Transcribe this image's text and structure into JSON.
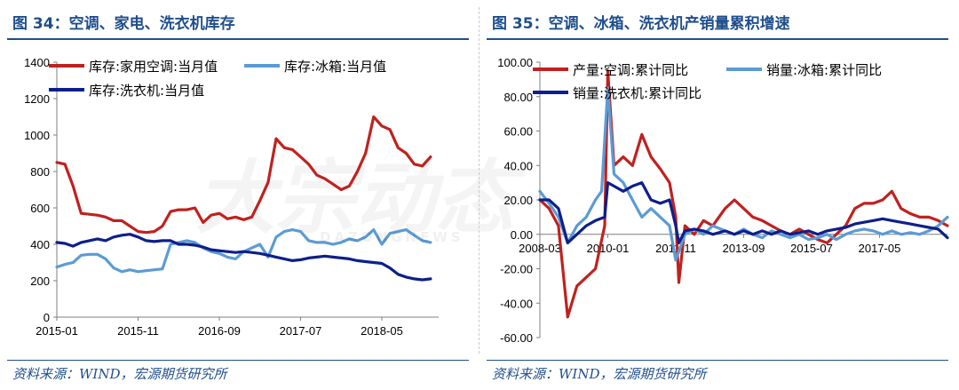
{
  "watermark": {
    "main": "大宗动态",
    "sub": "DAZONGNEWS"
  },
  "left": {
    "title": "图 34：空调、家电、洗衣机库存",
    "source": "资料来源：WIND，宏源期货研究所"
  },
  "right": {
    "title": "图 35：空调、冰箱、洗衣机产销量累积增速",
    "source": "资料来源：WIND，宏源期货研究所"
  },
  "chart_data": [
    {
      "type": "line",
      "title": "图 34：空调、家电、洗衣机库存",
      "xlabel": "",
      "ylabel": "",
      "x_tick_labels": [
        "2015-01",
        "2015-11",
        "2016-09",
        "2017-07",
        "2018-05"
      ],
      "x_tick_positions": [
        0,
        10,
        20,
        30,
        40
      ],
      "x_range": [
        0,
        47
      ],
      "ylim": [
        0,
        1400
      ],
      "y_ticks": [
        0,
        200,
        400,
        600,
        800,
        1000,
        1200,
        1400
      ],
      "legend_position": "top-left",
      "grid": false,
      "series": [
        {
          "name": "库存:家用空调:当月值",
          "color": "#c0211f",
          "values": [
            850,
            840,
            720,
            570,
            565,
            560,
            550,
            530,
            530,
            500,
            470,
            465,
            470,
            500,
            580,
            590,
            590,
            600,
            520,
            560,
            570,
            540,
            550,
            535,
            550,
            640,
            740,
            980,
            930,
            920,
            880,
            840,
            780,
            760,
            730,
            700,
            720,
            800,
            900,
            1100,
            1050,
            1030,
            930,
            900,
            840,
            830,
            880
          ]
        },
        {
          "name": "库存:冰箱:当月值",
          "color": "#5b9bd5",
          "values": [
            275,
            290,
            300,
            340,
            345,
            345,
            320,
            270,
            250,
            260,
            250,
            255,
            260,
            265,
            400,
            410,
            420,
            410,
            380,
            360,
            350,
            330,
            320,
            360,
            380,
            400,
            330,
            440,
            470,
            480,
            470,
            420,
            410,
            410,
            400,
            410,
            430,
            420,
            440,
            480,
            400,
            460,
            470,
            480,
            450,
            420,
            410
          ]
        },
        {
          "name": "库存:洗衣机:当月值",
          "color": "#0d1f8a",
          "values": [
            410,
            405,
            390,
            410,
            420,
            430,
            420,
            440,
            450,
            455,
            440,
            420,
            415,
            420,
            420,
            400,
            400,
            395,
            385,
            370,
            365,
            360,
            355,
            360,
            355,
            350,
            340,
            330,
            320,
            310,
            315,
            325,
            330,
            335,
            330,
            325,
            320,
            310,
            305,
            300,
            295,
            270,
            235,
            220,
            210,
            205,
            210
          ]
        }
      ]
    },
    {
      "type": "line",
      "title": "图 35：空调、冰箱、洗衣机产销量累积增速",
      "xlabel": "",
      "ylabel": "",
      "x_tick_labels": [
        "2008-03",
        "2010-01",
        "2011-11",
        "2013-09",
        "2015-07",
        "2017-05"
      ],
      "x_tick_positions": [
        0,
        22,
        44,
        66,
        88,
        110
      ],
      "x_range": [
        0,
        132
      ],
      "ylim": [
        -60,
        100
      ],
      "y_ticks": [
        -60,
        -40,
        -20,
        0,
        20,
        40,
        60,
        80,
        100
      ],
      "y_tick_labels": [
        "-60.00",
        "-40.00",
        "-20.00",
        "0.00",
        "20.00",
        "40.00",
        "60.00",
        "80.00",
        "100.00"
      ],
      "legend_position": "top-left",
      "grid": false,
      "series": [
        {
          "name": "产量:空调:累计同比",
          "color": "#c0211f",
          "points": [
            [
              0,
              20
            ],
            [
              3,
              15
            ],
            [
              6,
              5
            ],
            [
              9,
              -48
            ],
            [
              12,
              -30
            ],
            [
              15,
              -25
            ],
            [
              18,
              -20
            ],
            [
              21,
              5
            ],
            [
              22,
              95
            ],
            [
              24,
              40
            ],
            [
              27,
              45
            ],
            [
              30,
              40
            ],
            [
              33,
              58
            ],
            [
              36,
              45
            ],
            [
              39,
              38
            ],
            [
              42,
              30
            ],
            [
              44,
              10
            ],
            [
              45,
              -28
            ],
            [
              47,
              5
            ],
            [
              50,
              0
            ],
            [
              53,
              8
            ],
            [
              56,
              5
            ],
            [
              60,
              15
            ],
            [
              63,
              20
            ],
            [
              66,
              15
            ],
            [
              69,
              10
            ],
            [
              72,
              8
            ],
            [
              75,
              5
            ],
            [
              78,
              2
            ],
            [
              81,
              0
            ],
            [
              84,
              3
            ],
            [
              87,
              0
            ],
            [
              90,
              -3
            ],
            [
              93,
              -5
            ],
            [
              96,
              0
            ],
            [
              99,
              5
            ],
            [
              102,
              15
            ],
            [
              105,
              18
            ],
            [
              108,
              18
            ],
            [
              111,
              20
            ],
            [
              114,
              25
            ],
            [
              117,
              15
            ],
            [
              120,
              12
            ],
            [
              123,
              10
            ],
            [
              126,
              10
            ],
            [
              129,
              8
            ],
            [
              132,
              5
            ]
          ]
        },
        {
          "name": "销量:冰箱:累计同比",
          "color": "#5b9bd5",
          "points": [
            [
              0,
              25
            ],
            [
              3,
              18
            ],
            [
              6,
              10
            ],
            [
              9,
              -5
            ],
            [
              12,
              5
            ],
            [
              15,
              10
            ],
            [
              18,
              20
            ],
            [
              20,
              25
            ],
            [
              22,
              85
            ],
            [
              24,
              35
            ],
            [
              27,
              30
            ],
            [
              30,
              20
            ],
            [
              33,
              10
            ],
            [
              36,
              15
            ],
            [
              39,
              10
            ],
            [
              42,
              5
            ],
            [
              44,
              -15
            ],
            [
              47,
              0
            ],
            [
              50,
              3
            ],
            [
              53,
              0
            ],
            [
              56,
              5
            ],
            [
              60,
              2
            ],
            [
              63,
              0
            ],
            [
              66,
              3
            ],
            [
              69,
              0
            ],
            [
              72,
              -2
            ],
            [
              75,
              2
            ],
            [
              78,
              0
            ],
            [
              81,
              -2
            ],
            [
              84,
              0
            ],
            [
              87,
              -3
            ],
            [
              90,
              -2
            ],
            [
              93,
              0
            ],
            [
              96,
              -3
            ],
            [
              99,
              0
            ],
            [
              102,
              2
            ],
            [
              105,
              3
            ],
            [
              108,
              2
            ],
            [
              111,
              0
            ],
            [
              114,
              2
            ],
            [
              117,
              0
            ],
            [
              120,
              1
            ],
            [
              123,
              0
            ],
            [
              126,
              2
            ],
            [
              129,
              5
            ],
            [
              132,
              10
            ]
          ]
        },
        {
          "name": "销量:洗衣机:累计同比",
          "color": "#0d1f8a",
          "points": [
            [
              0,
              20
            ],
            [
              3,
              20
            ],
            [
              6,
              15
            ],
            [
              9,
              -5
            ],
            [
              12,
              0
            ],
            [
              15,
              5
            ],
            [
              18,
              8
            ],
            [
              21,
              10
            ],
            [
              22,
              30
            ],
            [
              24,
              28
            ],
            [
              27,
              25
            ],
            [
              30,
              28
            ],
            [
              33,
              30
            ],
            [
              36,
              20
            ],
            [
              39,
              18
            ],
            [
              42,
              20
            ],
            [
              44,
              5
            ],
            [
              45,
              -5
            ],
            [
              47,
              2
            ],
            [
              50,
              3
            ],
            [
              53,
              2
            ],
            [
              56,
              0
            ],
            [
              60,
              2
            ],
            [
              63,
              0
            ],
            [
              66,
              2
            ],
            [
              69,
              0
            ],
            [
              72,
              2
            ],
            [
              75,
              0
            ],
            [
              78,
              2
            ],
            [
              81,
              0
            ],
            [
              84,
              1
            ],
            [
              87,
              2
            ],
            [
              90,
              0
            ],
            [
              93,
              2
            ],
            [
              96,
              3
            ],
            [
              99,
              4
            ],
            [
              102,
              6
            ],
            [
              105,
              7
            ],
            [
              108,
              8
            ],
            [
              111,
              9
            ],
            [
              114,
              8
            ],
            [
              117,
              7
            ],
            [
              120,
              6
            ],
            [
              123,
              5
            ],
            [
              126,
              4
            ],
            [
              129,
              3
            ],
            [
              132,
              -2
            ]
          ]
        }
      ]
    }
  ]
}
